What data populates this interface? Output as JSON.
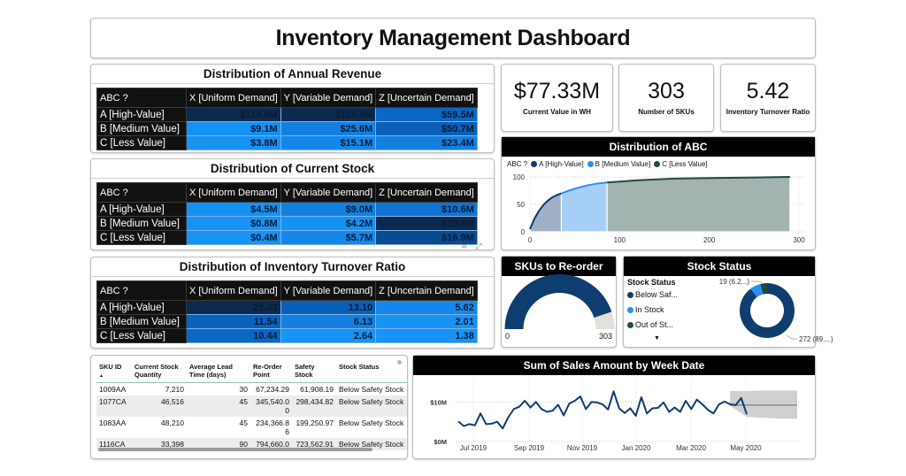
{
  "header": {
    "title": "Inventory Management Dashboard"
  },
  "matrix_common": {
    "corner": "ABC ?",
    "columns": [
      "X [Uniform Demand]",
      "Y [Variable Demand]",
      "Z [Uncertain Demand]"
    ],
    "rows": [
      "A [High-Value]",
      "B [Medium Value]",
      "C [Less Value]"
    ]
  },
  "revenue_matrix": {
    "title": "Distribution of Annual Revenue",
    "values": [
      [
        "$114.0M",
        "$118.0M",
        "$59.5M"
      ],
      [
        "$9.1M",
        "$25.6M",
        "$50.7M"
      ],
      [
        "$3.8M",
        "$15.1M",
        "$23.4M"
      ]
    ],
    "colors": [
      [
        "#0c2a4f",
        "#0c2a4f",
        "#0a67c4"
      ],
      [
        "#1591f2",
        "#1380e0",
        "#0a5fb8"
      ],
      [
        "#1793f4",
        "#1488ea",
        "#1380e0"
      ]
    ]
  },
  "stock_matrix": {
    "title": "Distribution of Current Stock",
    "values": [
      [
        "$4.5M",
        "$9.0M",
        "$10.6M"
      ],
      [
        "$0.8M",
        "$4.2M",
        "$25.3M"
      ],
      [
        "$0.4M",
        "$5.7M",
        "$16.9M"
      ]
    ],
    "colors": [
      [
        "#1591f2",
        "#1380e0",
        "#0f74d2"
      ],
      [
        "#1793f4",
        "#1591f2",
        "#0c2a4f"
      ],
      [
        "#1793f4",
        "#1488ea",
        "#0b4a8f"
      ]
    ]
  },
  "turnover_matrix": {
    "title": "Distribution of Inventory Turnover Ratio",
    "values": [
      [
        "25.43",
        "13.10",
        "5.62"
      ],
      [
        "11.54",
        "6.13",
        "2.01"
      ],
      [
        "10.44",
        "2.64",
        "1.38"
      ]
    ],
    "colors": [
      [
        "#0c2a4f",
        "#0a5fb8",
        "#1488ea"
      ],
      [
        "#0a62bc",
        "#1380e0",
        "#1793f4"
      ],
      [
        "#0a67c4",
        "#1793f4",
        "#1793f4"
      ]
    ]
  },
  "visual_tools": {
    "filter_icon": "≡",
    "expand_icon": "⤢"
  },
  "kpis": [
    {
      "value": "$77.33M",
      "label": "Current Value in WH"
    },
    {
      "value": "303",
      "label": "Number of SKUs"
    },
    {
      "value": "5.42",
      "label": "Inventory Turnover Ratio"
    }
  ],
  "abc_chart": {
    "title": "Distribution of ABC",
    "legend_title": "ABC ?",
    "legend": [
      {
        "label": "A [High-Value]",
        "color": "#0c3a6e"
      },
      {
        "label": "B [Medium Value]",
        "color": "#2b8ff0"
      },
      {
        "label": "C [Less Value]",
        "color": "#1e4a40"
      }
    ]
  },
  "reorder_gauge": {
    "title": "SKUs to Re-order",
    "min_label": "0",
    "max_label": "303",
    "min": 0,
    "max": 303,
    "value": 272,
    "fill_color": "#0f3d70",
    "track_color": "#e4e0dc"
  },
  "stock_status": {
    "title": "Stock Status",
    "legend_title": "Stock Status",
    "items": [
      {
        "label": "Below Saf...",
        "color": "#0f3d70"
      },
      {
        "label": "In Stock",
        "color": "#2b8ff0"
      },
      {
        "label": "Out of St...",
        "color": "#1e4a40"
      }
    ],
    "more_icon": "▼",
    "label_small": "19 (6.2...)",
    "label_large": "272 (89....)"
  },
  "sku_table": {
    "columns": [
      "SKU ID",
      "Current Stock Quantity",
      "Average Lead Time (days)",
      "Re-Order Point",
      "Safety Stock",
      "Stock Status"
    ],
    "sort_icon": "▲",
    "rows": [
      [
        "1009AA",
        "7,210",
        "30",
        "67,234.29",
        "61,908.19",
        "Below Safety Stock"
      ],
      [
        "1077CA",
        "46,516",
        "45",
        "345,540.00",
        "298,434.82",
        "Below Safety Stock"
      ],
      [
        "1083AA",
        "48,210",
        "45",
        "234,366.86",
        "199,250.97",
        "Below Safety Stock"
      ],
      [
        "1116CA",
        "33,398",
        "90",
        "794,660.0",
        "723,562.91",
        "Below Safety Stock"
      ]
    ]
  },
  "chart_data": [
    {
      "type": "area",
      "title": "Distribution of ABC",
      "xlabel": "",
      "ylabel": "",
      "xlim": [
        0,
        300
      ],
      "ylim": [
        0,
        100
      ],
      "x_ticks": [
        "0",
        "100",
        "200",
        "300"
      ],
      "y_ticks": [
        "0",
        "50",
        "100"
      ],
      "grid": true,
      "legend_position": "top-left",
      "series": [
        {
          "name": "A [High-Value]",
          "color": "#0c3a6e",
          "fill": "#a0b0c4",
          "x": [
            0,
            5,
            10,
            15,
            20,
            25,
            30,
            35
          ],
          "y": [
            5,
            24,
            38,
            49,
            57,
            63,
            67,
            70
          ]
        },
        {
          "name": "B [Medium Value]",
          "color": "#2b8ff0",
          "fill": "#a6cff7",
          "x": [
            35,
            45,
            55,
            65,
            75,
            86
          ],
          "y": [
            70,
            76,
            81,
            85,
            88,
            90
          ]
        },
        {
          "name": "C [Less Value]",
          "color": "#1e4a40",
          "fill": "#a3b3b0",
          "x": [
            86,
            120,
            160,
            200,
            250,
            290
          ],
          "y": [
            90,
            94,
            97,
            98,
            99,
            100
          ]
        }
      ]
    },
    {
      "type": "line",
      "title": "Sum of Sales Amount by Week Date",
      "xlabel": "",
      "ylabel": "",
      "ylim": [
        0,
        15
      ],
      "y_unit": "$M",
      "y_ticks": [
        "$0M",
        "$10M"
      ],
      "x_ticks": [
        "Jul 2019",
        "Sep 2019",
        "Nov 2019",
        "Jan 2020",
        "Mar 2020",
        "May 2020"
      ],
      "grid": true,
      "series": [
        {
          "name": "Sales Amount",
          "color": "#0f3d70",
          "values": [
            5.1,
            3.9,
            4.4,
            4.1,
            7.1,
            4.4,
            4.5,
            5.0,
            3.3,
            6.1,
            8.2,
            8.8,
            10.3,
            8.6,
            10.0,
            8.2,
            7.5,
            7.8,
            9.3,
            6.6,
            9.6,
            10.3,
            11.4,
            8.2,
            10.0,
            9.9,
            9.4,
            8.1,
            12.7,
            8.4,
            7.2,
            8.4,
            6.5,
            11.2,
            7.1,
            8.4,
            8.5,
            9.9,
            7.5,
            8.6,
            7.5,
            10.3,
            8.2,
            10.6,
            9.4,
            8.0,
            7.1,
            9.4,
            10.1,
            9.4,
            9.2,
            11.0,
            6.9
          ]
        },
        {
          "name": "Forecast",
          "color": "#666666",
          "forecast_start_index": 49,
          "values": [
            9.2,
            9.2,
            9.2,
            9.2,
            9.2
          ],
          "band_upper": [
            12.8,
            12.8,
            12.9,
            12.9,
            12.9
          ],
          "band_lower": [
            9.0,
            6.2,
            6.0,
            5.8,
            5.7
          ]
        }
      ]
    }
  ]
}
